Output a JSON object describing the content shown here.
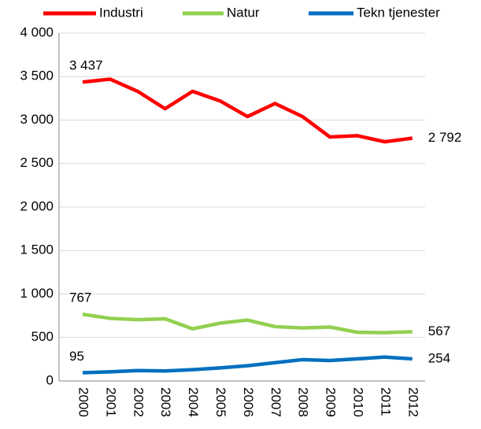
{
  "chart_data": {
    "type": "line",
    "categories": [
      "2000",
      "2001",
      "2002",
      "2003",
      "2004",
      "2005",
      "2006",
      "2007",
      "2008",
      "2009",
      "2010",
      "2011",
      "2012"
    ],
    "series": [
      {
        "name": "Industri",
        "color": "#ff0000",
        "values": [
          3437,
          3470,
          3330,
          3130,
          3330,
          3220,
          3040,
          3190,
          3040,
          2805,
          2820,
          2750,
          2792
        ],
        "value_labels": [
          "3 437",
          null,
          null,
          null,
          null,
          null,
          null,
          null,
          null,
          null,
          null,
          null,
          "2 792"
        ]
      },
      {
        "name": "Natur",
        "color": "#92d050",
        "values": [
          767,
          720,
          705,
          715,
          600,
          665,
          700,
          625,
          610,
          620,
          560,
          555,
          567
        ],
        "value_labels": [
          "767",
          null,
          null,
          null,
          null,
          null,
          null,
          null,
          null,
          null,
          null,
          null,
          "567"
        ]
      },
      {
        "name": "Tekn tjenester",
        "color": "#0070c0",
        "values": [
          95,
          105,
          120,
          115,
          130,
          150,
          175,
          210,
          245,
          235,
          255,
          275,
          254
        ],
        "value_labels": [
          "95",
          null,
          null,
          null,
          null,
          null,
          null,
          null,
          null,
          null,
          null,
          null,
          "254"
        ]
      }
    ],
    "ylim": [
      0,
      4000
    ],
    "yticks": [
      0,
      500,
      {
        "value": 1000,
        "label": "1 000"
      },
      {
        "value": 1500,
        "label": "1 500"
      },
      {
        "value": 2000,
        "label": "2 000"
      },
      {
        "value": 2500,
        "label": "2 500"
      },
      {
        "value": 3000,
        "label": "3 000"
      },
      {
        "value": 3500,
        "label": "3 500"
      },
      {
        "value": 4000,
        "label": "4 000"
      }
    ],
    "grid": true,
    "legend": "top"
  }
}
